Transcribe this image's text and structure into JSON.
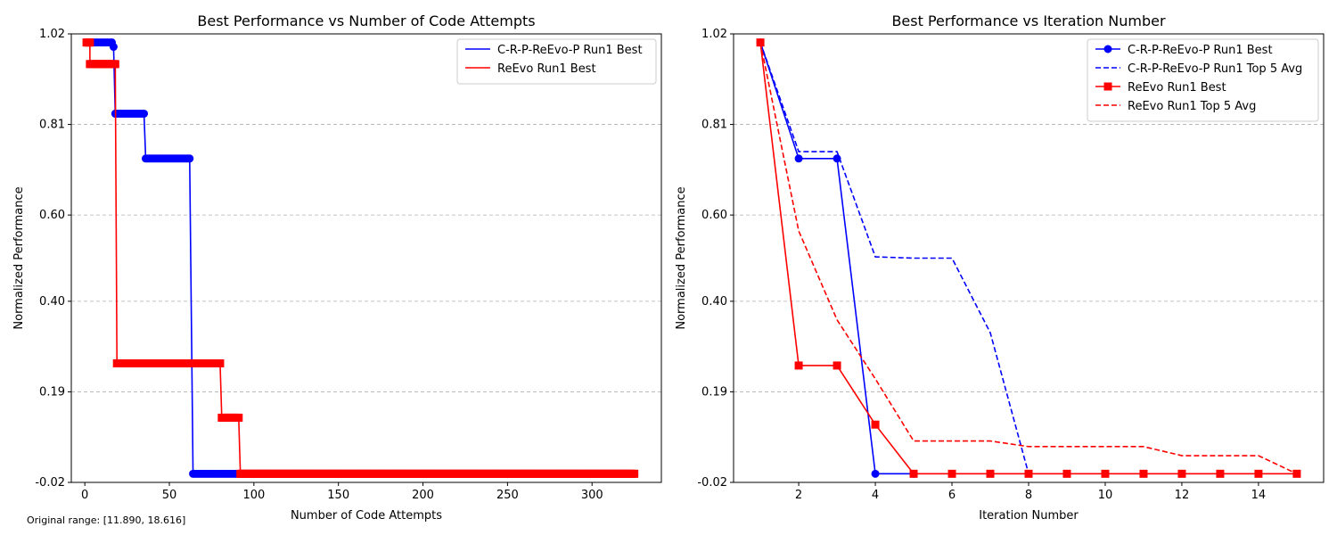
{
  "footnote": "Original range: [11.890, 18.616]",
  "chart_data": [
    {
      "type": "line",
      "title": "Best Performance vs Number of Code Attempts",
      "xlabel": "Number of Code Attempts",
      "ylabel": "Normalized Performance",
      "xlim": [
        -8,
        341
      ],
      "ylim": [
        -0.02,
        1.02
      ],
      "xticks": [
        0,
        50,
        100,
        150,
        200,
        250,
        300
      ],
      "yticks": [
        -0.02,
        0.19,
        0.4,
        0.6,
        0.81,
        1.02
      ],
      "ytick_labels": [
        "-0.02",
        "0.19",
        "0.40",
        "0.60",
        "0.81",
        "1.02"
      ],
      "grid": "y-dashed",
      "legend_position": "top-right",
      "series": [
        {
          "name": "C-R-P-ReEvo-P Run1 Best",
          "color": "#0000ff",
          "marker": "circle",
          "steps": [
            {
              "x_start": 4,
              "x_end": 16,
              "y": 1.0
            },
            {
              "x_start": 17,
              "x_end": 17,
              "y": 0.99
            },
            {
              "x_start": 18,
              "x_end": 35,
              "y": 0.835
            },
            {
              "x_start": 36,
              "x_end": 62,
              "y": 0.731
            },
            {
              "x_start": 64,
              "x_end": 325,
              "y": 0.0
            }
          ]
        },
        {
          "name": "ReEvo Run1 Best",
          "color": "#ff0000",
          "marker": "square",
          "steps": [
            {
              "x_start": 1,
              "x_end": 3,
              "y": 1.0
            },
            {
              "x_start": 3,
              "x_end": 18,
              "y": 0.95
            },
            {
              "x_start": 19,
              "x_end": 80,
              "y": 0.256
            },
            {
              "x_start": 81,
              "x_end": 91,
              "y": 0.13
            },
            {
              "x_start": 92,
              "x_end": 325,
              "y": 0.0
            }
          ]
        }
      ]
    },
    {
      "type": "line",
      "title": "Best Performance vs Iteration Number",
      "xlabel": "Iteration Number",
      "ylabel": "Normalized Performance",
      "xlim": [
        0.3,
        15.7
      ],
      "ylim": [
        -0.02,
        1.02
      ],
      "xticks": [
        2,
        4,
        6,
        8,
        10,
        12,
        14
      ],
      "yticks": [
        -0.02,
        0.19,
        0.4,
        0.6,
        0.81,
        1.02
      ],
      "ytick_labels": [
        "-0.02",
        "0.19",
        "0.40",
        "0.60",
        "0.81",
        "1.02"
      ],
      "grid": "y-dashed",
      "legend_position": "top-right",
      "x": [
        1,
        2,
        3,
        4,
        5,
        6,
        7,
        8,
        9,
        10,
        11,
        12,
        13,
        14,
        15
      ],
      "series": [
        {
          "name": "C-R-P-ReEvo-P Run1 Best",
          "color": "#0000ff",
          "style": "solid",
          "marker": "circle",
          "x": [
            1,
            2,
            3,
            4,
            5
          ],
          "values": [
            1.0,
            0.731,
            0.731,
            0.0,
            0.0
          ]
        },
        {
          "name": "C-R-P-ReEvo-P Run1 Top 5 Avg",
          "color": "#0000ff",
          "style": "dashed",
          "marker": "none",
          "x": [
            1,
            2,
            3,
            4,
            5,
            6,
            7,
            8
          ],
          "values": [
            1.0,
            0.747,
            0.747,
            0.503,
            0.5,
            0.5,
            0.327,
            0.0
          ]
        },
        {
          "name": "ReEvo Run1 Best",
          "color": "#ff0000",
          "style": "solid",
          "marker": "square",
          "x": [
            1,
            2,
            3,
            4,
            5,
            6,
            7,
            8,
            9,
            10,
            11,
            12,
            13,
            14,
            15
          ],
          "values": [
            1.0,
            0.251,
            0.251,
            0.114,
            0.0,
            0.0,
            0.0,
            0.0,
            0.0,
            0.0,
            0.0,
            0.0,
            0.0,
            0.0,
            0.0
          ]
        },
        {
          "name": "ReEvo Run1 Top 5 Avg",
          "color": "#ff0000",
          "style": "dashed",
          "marker": "none",
          "x": [
            1,
            2,
            3,
            4,
            5,
            6,
            7,
            8,
            9,
            10,
            11,
            12,
            13,
            14,
            15
          ],
          "values": [
            1.0,
            0.563,
            0.357,
            0.22,
            0.076,
            0.076,
            0.076,
            0.063,
            0.063,
            0.063,
            0.063,
            0.042,
            0.042,
            0.042,
            0.0
          ]
        }
      ]
    }
  ]
}
